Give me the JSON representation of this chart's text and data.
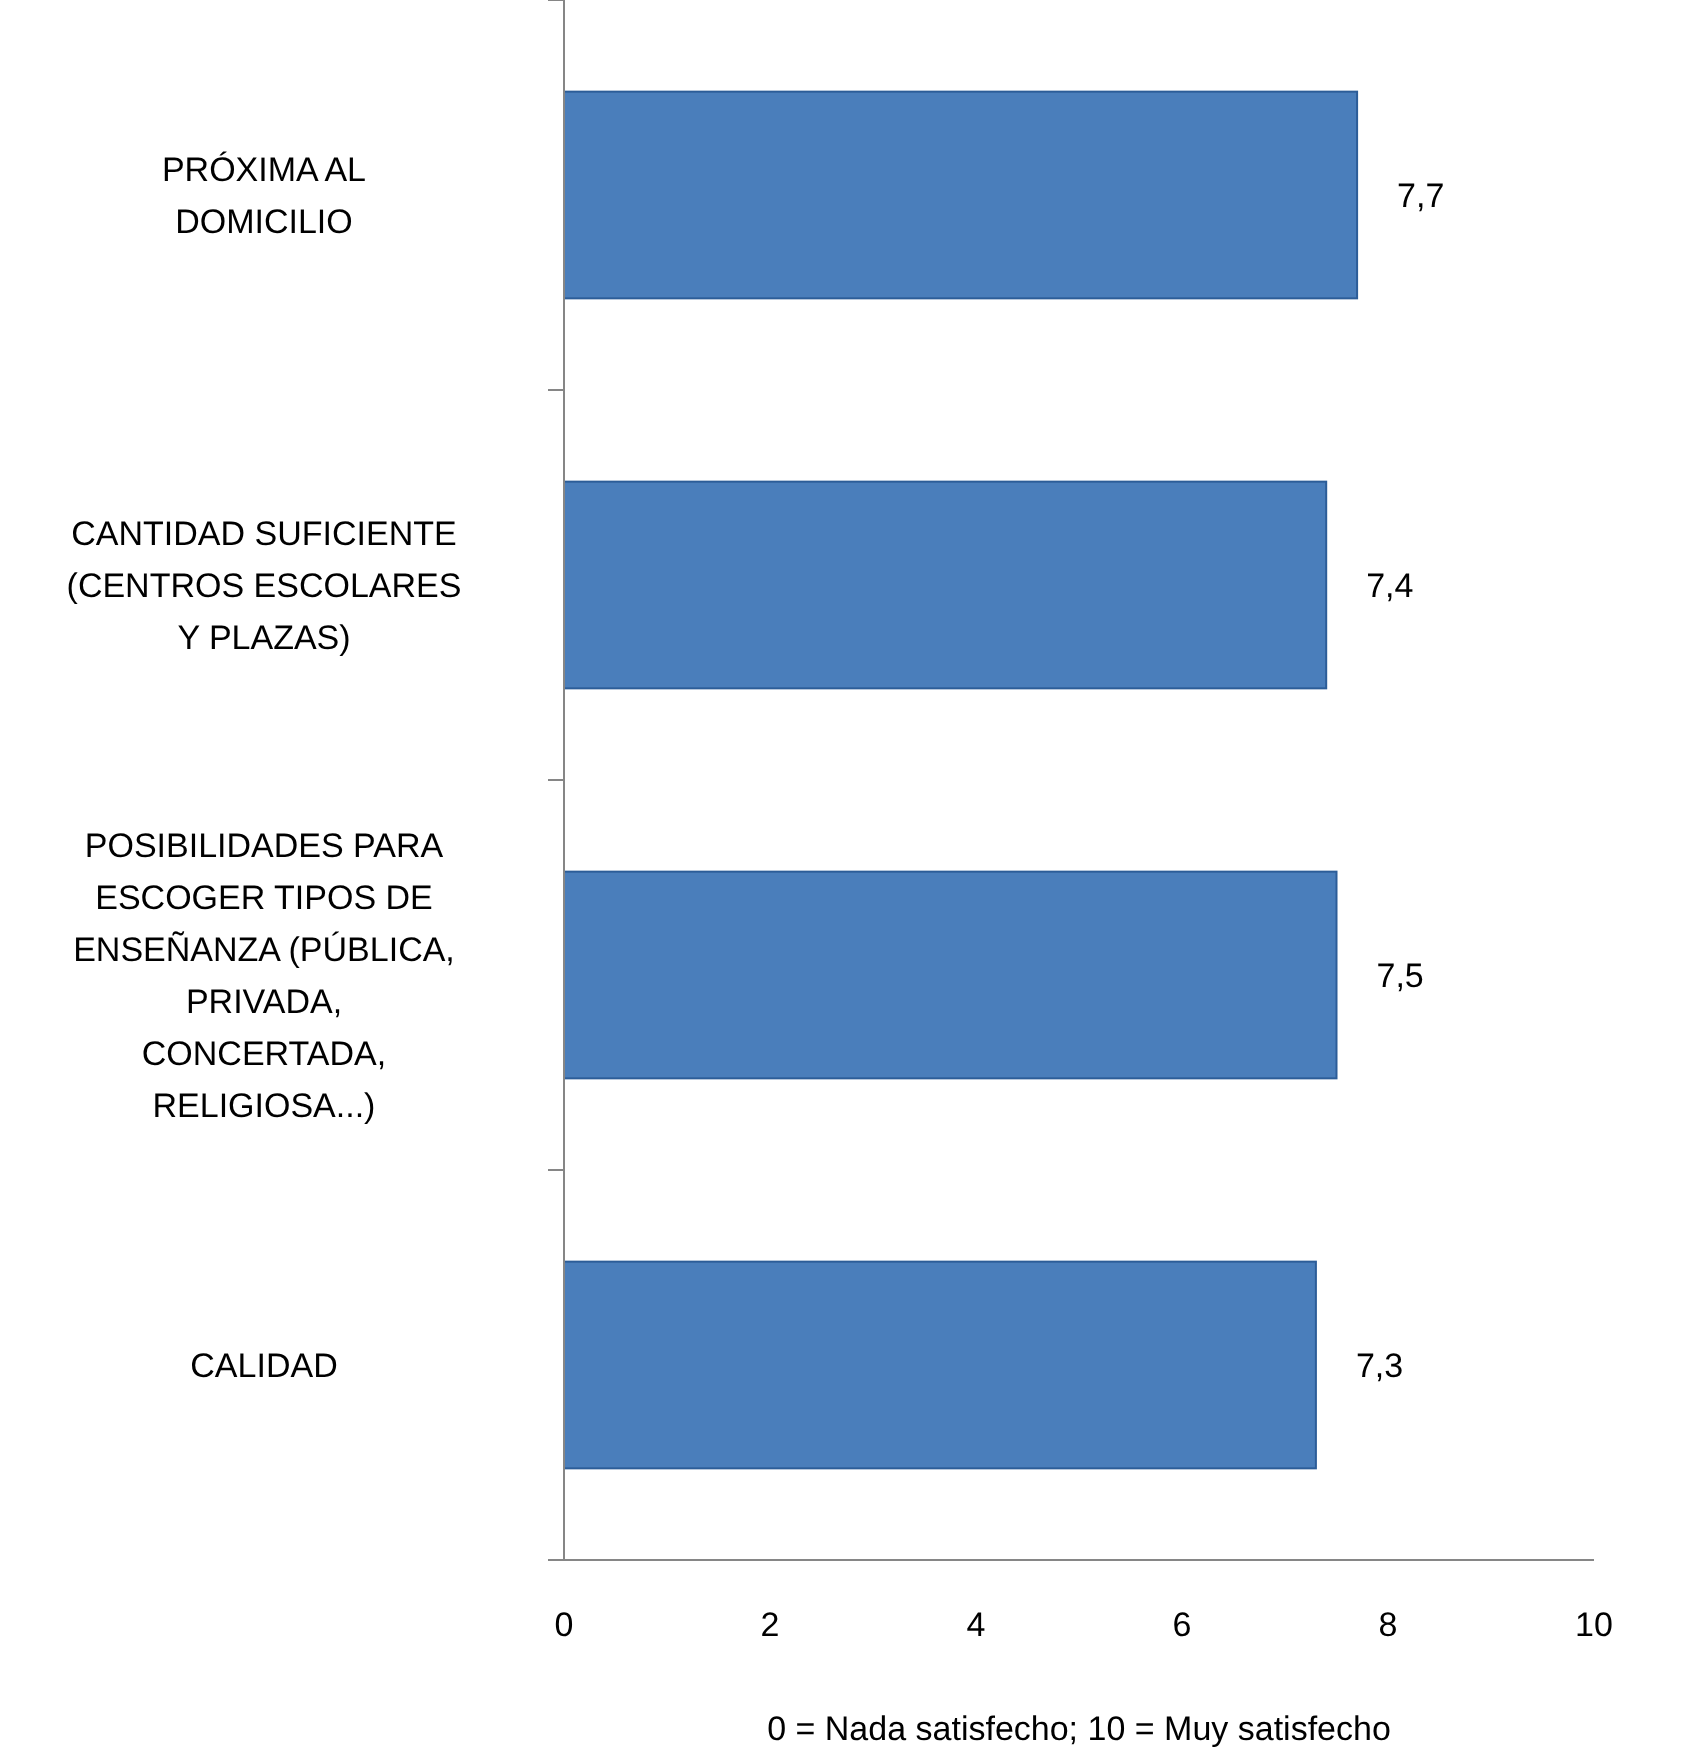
{
  "chart_data": {
    "type": "bar",
    "orientation": "horizontal",
    "categories": [
      "PRÓXIMA AL DOMICILIO",
      "CANTIDAD SUFICIENTE (CENTROS ESCOLARES Y PLAZAS)",
      "POSIBILIDADES PARA ESCOGER TIPOS DE ENSEÑANZA (PÚBLICA, PRIVADA, CONCERTADA, RELIGIOSA...)",
      "CALIDAD"
    ],
    "values": [
      7.7,
      7.4,
      7.5,
      7.3
    ],
    "value_labels": [
      "7,7",
      "7,4",
      "7,5",
      "7,3"
    ],
    "color": "#4a7ebb",
    "xlim": [
      0,
      10
    ],
    "xticks": [
      0,
      2,
      4,
      6,
      8,
      10
    ],
    "xlabel": "0 = Nada satisfecho; 10 = Muy satisfecho",
    "grid": false
  }
}
